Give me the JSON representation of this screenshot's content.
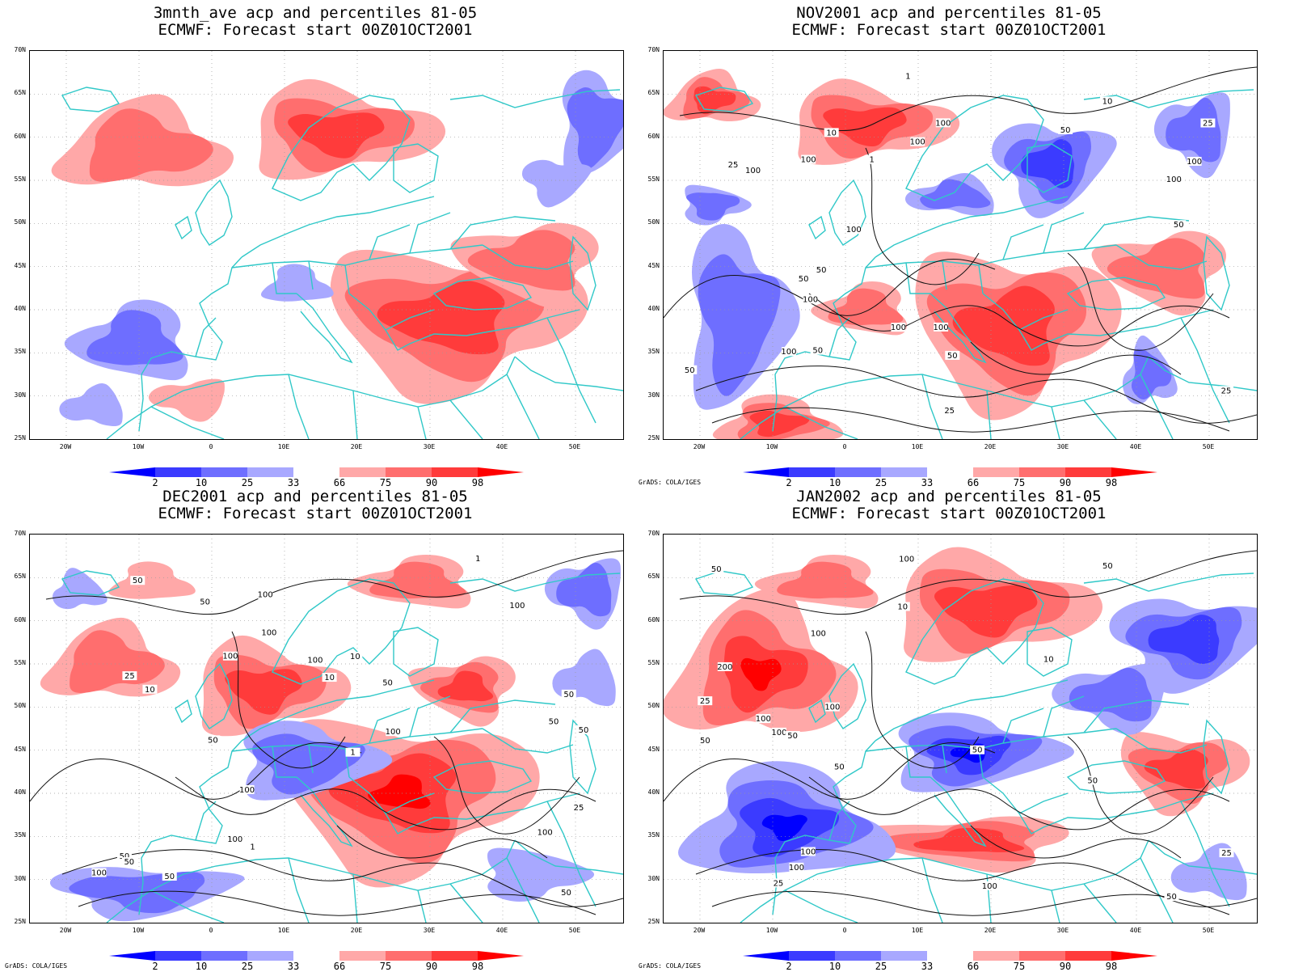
{
  "panels": [
    {
      "title1": "3mnth_ave acp and percentiles 81-05",
      "title2": "ECMWF: Forecast start 00Z01OCT2001",
      "credit": "",
      "contour_labels": []
    },
    {
      "title1": "NOV2001 acp and percentiles 81-05",
      "title2": "ECMWF: Forecast start 00Z01OCT2001",
      "credit": "GrADS: COLA/IGES",
      "contour_labels": [
        "100",
        "100",
        "50",
        "100",
        "50",
        "50",
        "100",
        "100",
        "100",
        "100",
        "50",
        "100",
        "100",
        "50",
        "50",
        "25",
        "10",
        "50",
        "100",
        "100",
        "25",
        "10",
        "25",
        "1",
        "1",
        "25"
      ]
    },
    {
      "title1": "DEC2001 acp and percentiles 81-05",
      "title2": "ECMWF: Forecast start 00Z01OCT2001",
      "credit": "GrADS: COLA/IGES",
      "contour_labels": [
        "100",
        "100",
        "100",
        "50",
        "50",
        "50",
        "100",
        "100",
        "50",
        "50",
        "100",
        "100",
        "50",
        "100",
        "100",
        "50",
        "100",
        "50",
        "25",
        "10",
        "50",
        "25",
        "10",
        "1",
        "1",
        "1",
        "10",
        "50",
        "50"
      ]
    },
    {
      "title1": "JAN2002 acp and percentiles 81-05",
      "title2": "ECMWF: Forecast start 00Z01OCT2001",
      "credit": "GrADS: COLA/IGES",
      "contour_labels": [
        "100",
        "100",
        "100",
        "50",
        "200",
        "100",
        "50",
        "100",
        "50",
        "100",
        "100",
        "50",
        "100",
        "50",
        "25",
        "25",
        "50",
        "10",
        "50",
        "25",
        "50",
        "10"
      ]
    }
  ],
  "lat_labels": [
    "70N",
    "65N",
    "60N",
    "55N",
    "50N",
    "45N",
    "40N",
    "35N",
    "30N",
    "25N"
  ],
  "lon_labels": [
    "20W",
    "10W",
    "0",
    "10E",
    "20E",
    "30E",
    "40E",
    "50E"
  ],
  "colorbar_labels": [
    "2",
    "10",
    "25",
    "33",
    "66",
    "75",
    "90",
    "98"
  ],
  "colorbar_colors": [
    "#0000ff",
    "#3b3bff",
    "#6e6eff",
    "#a8a8ff",
    "#ffffff",
    "#ffa8a8",
    "#ff6e6e",
    "#ff3b3b",
    "#ff0000"
  ],
  "coast_color": "#30c8c8"
}
